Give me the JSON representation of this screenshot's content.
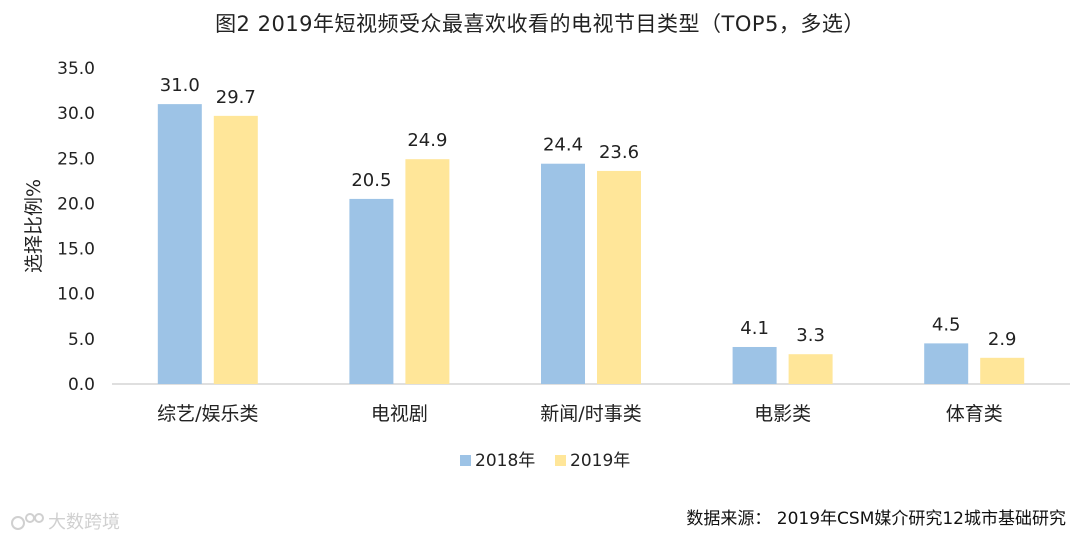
{
  "title": "图2  2019年短视频受众最喜欢收看的电视节目类型（TOP5，多选）",
  "source": "数据来源：  2019年CSM媒介研究12城市基础研究",
  "watermark": "大数跨境",
  "colors": {
    "series_2018": "#9dc3e6",
    "series_2019": "#ffe699",
    "axis": "#bfbfbf",
    "text": "#222222"
  },
  "chart_data": {
    "type": "bar",
    "categories": [
      "综艺/娱乐类",
      "电视剧",
      "新闻/时事类",
      "电影类",
      "体育类"
    ],
    "series": [
      {
        "name": "2018年",
        "values": [
          31.0,
          20.5,
          24.4,
          4.1,
          4.5
        ]
      },
      {
        "name": "2019年",
        "values": [
          29.7,
          24.9,
          23.6,
          3.3,
          2.9
        ]
      }
    ],
    "ylabel": "选择比例%",
    "xlabel": "",
    "ylim": [
      0,
      35
    ],
    "yticks": [
      "0.0",
      "5.0",
      "10.0",
      "15.0",
      "20.0",
      "25.0",
      "30.0",
      "35.0"
    ],
    "grid": false,
    "legend": "bottom-center"
  }
}
